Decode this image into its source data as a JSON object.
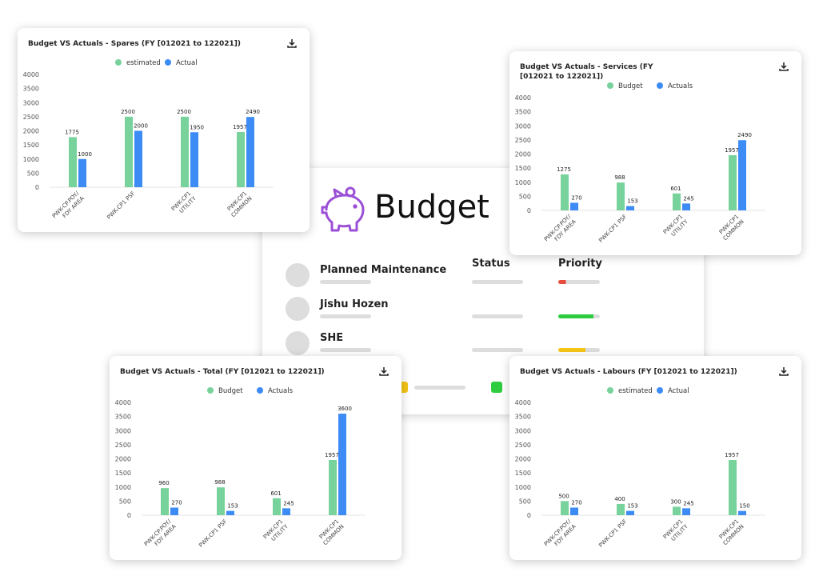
{
  "card": {
    "title": "Budget",
    "columns": [
      "Status",
      "Priority"
    ],
    "rows": [
      "Planned Maintenance",
      "Jishu Hozen",
      "SHE"
    ]
  },
  "chart_data": [
    {
      "type": "bar",
      "title": "Budget VS Actuals - Spares (FY [012021 to 122021])",
      "categories": [
        [
          "PWK-CP.POY/",
          "FDY AREA"
        ],
        [
          "PWK-CP1 PSF"
        ],
        [
          "PWK-CP1",
          "UTILITY"
        ],
        [
          "PWK-CP1",
          "COMMON"
        ]
      ],
      "series": [
        {
          "name": "estimated",
          "color": "#77d29b",
          "values": [
            1775,
            2500,
            2500,
            1957
          ]
        },
        {
          "name": "Actual",
          "color": "#3d8bf5",
          "values": [
            1000,
            2000,
            1950,
            2490
          ]
        }
      ],
      "ylim": [
        0,
        4000
      ],
      "yticks": [
        0,
        500,
        1000,
        1500,
        2000,
        2500,
        3000,
        3500,
        4000
      ],
      "grid": false
    },
    {
      "type": "bar",
      "title": "Budget VS Actuals - Services (FY [012021 to 122021])",
      "categories": [
        [
          "PWK-CP.POY/",
          "FDY AREA"
        ],
        [
          "PWK-CP1 PSF"
        ],
        [
          "PWK-CP1",
          "UTILITY"
        ],
        [
          "PWK-CP1",
          "COMMON"
        ]
      ],
      "series": [
        {
          "name": "Budget",
          "color": "#77d29b",
          "values": [
            1275,
            988,
            601,
            1957
          ]
        },
        {
          "name": "Actuals",
          "color": "#3d8bf5",
          "values": [
            270,
            153,
            245,
            2490
          ]
        }
      ],
      "ylim": [
        0,
        4000
      ],
      "yticks": [
        0,
        500,
        1000,
        1500,
        2000,
        2500,
        3000,
        3500,
        4000
      ],
      "grid": false
    },
    {
      "type": "bar",
      "title": "Budget VS Actuals - Total (FY [012021 to 122021])",
      "categories": [
        [
          "PWK-CP.POY/",
          "FDY AREA"
        ],
        [
          "PWK-CP1 PSF"
        ],
        [
          "PWK-CP1",
          "UTILITY"
        ],
        [
          "PWK-CP1",
          "COMMON"
        ]
      ],
      "series": [
        {
          "name": "Budget",
          "color": "#77d29b",
          "values": [
            960,
            988,
            601,
            1957
          ]
        },
        {
          "name": "Actuals",
          "color": "#3d8bf5",
          "values": [
            270,
            153,
            245,
            3600
          ]
        }
      ],
      "ylim": [
        0,
        4000
      ],
      "yticks": [
        0,
        500,
        1000,
        1500,
        2000,
        2500,
        3000,
        3500,
        4000
      ],
      "grid": false
    },
    {
      "type": "bar",
      "title": "Budget VS Actuals - Labours (FY [012021 to 122021])",
      "categories": [
        [
          "PWK-CP.POY/",
          "FDY AREA"
        ],
        [
          "PWK-CP1 PSF"
        ],
        [
          "PWK-CP1",
          "UTILITY"
        ],
        [
          "PWK-CP1",
          "COMMON"
        ]
      ],
      "series": [
        {
          "name": "estimated",
          "color": "#77d29b",
          "values": [
            500,
            400,
            300,
            1957
          ]
        },
        {
          "name": "Actual",
          "color": "#3d8bf5",
          "values": [
            270,
            153,
            245,
            150
          ]
        }
      ],
      "ylim": [
        0,
        4000
      ],
      "yticks": [
        0,
        500,
        1000,
        1500,
        2000,
        2500,
        3000,
        3500,
        4000
      ],
      "grid": false
    }
  ]
}
